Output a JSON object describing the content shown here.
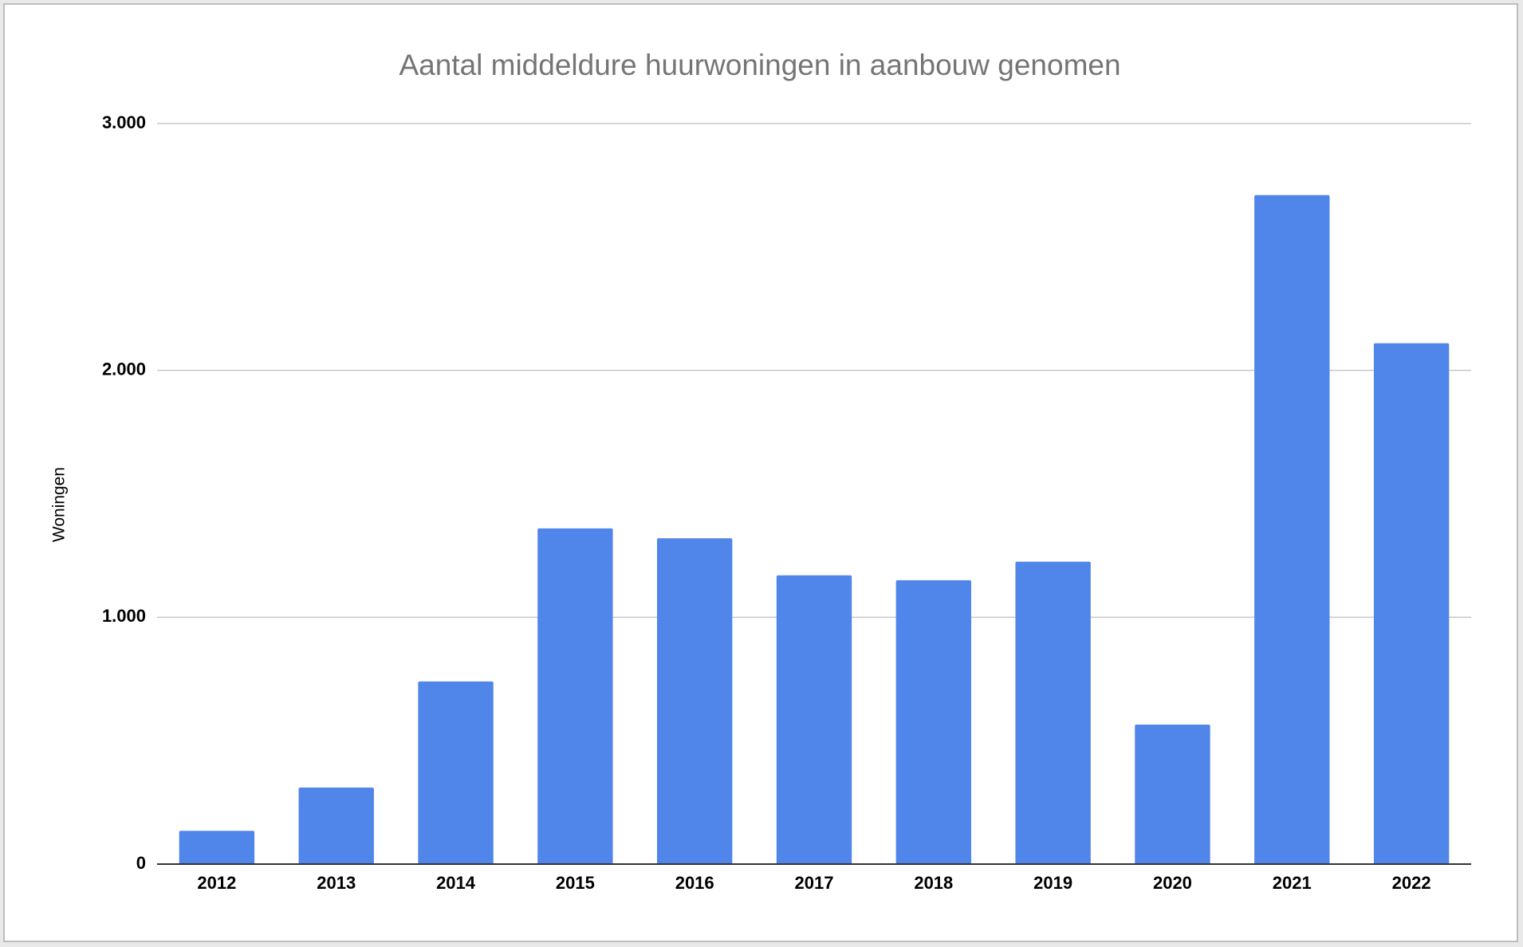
{
  "chart_data": {
    "type": "bar",
    "title": "Aantal middeldure huurwoningen in aanbouw genomen",
    "y_label": "Woningen",
    "categories": [
      "2012",
      "2013",
      "2014",
      "2015",
      "2016",
      "2017",
      "2018",
      "2019",
      "2020",
      "2021",
      "2022"
    ],
    "values": [
      135,
      310,
      740,
      1360,
      1320,
      1170,
      1150,
      1225,
      565,
      2710,
      2110
    ],
    "color": "#5085ea",
    "ylim": [
      0,
      3000
    ],
    "yticks": [
      0,
      {
        "value": 1000,
        "label": "1.000"
      },
      {
        "value": 2000,
        "label": "2.000"
      },
      {
        "value": 3000,
        "label": "3.000"
      }
    ],
    "grid": true
  }
}
